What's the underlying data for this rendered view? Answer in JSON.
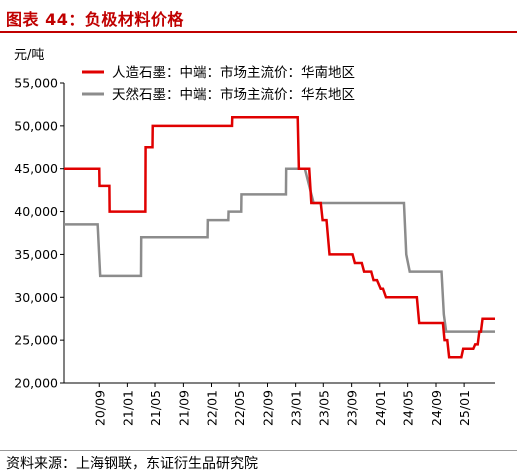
{
  "title": "图表 44：负极材料价格",
  "source": "资料来源：上海钢联，东证衍生品研究院",
  "colors": {
    "accent": "#c00000",
    "series_red": "#e00000",
    "series_gray": "#8c8c8c"
  },
  "chart_data": {
    "type": "line",
    "ylabel": "元/吨",
    "ylim": [
      20000,
      55000
    ],
    "yticks": [
      20000,
      25000,
      30000,
      35000,
      40000,
      45000,
      50000,
      55000
    ],
    "ytick_labels": [
      "20,000",
      "25,000",
      "30,000",
      "35,000",
      "40,000",
      "45,000",
      "50,000",
      "55,000"
    ],
    "xlim": [
      "2020-04-01",
      "2025-05-15"
    ],
    "xticks": [
      "2020-09-01",
      "2021-01-01",
      "2021-05-01",
      "2021-09-01",
      "2022-01-01",
      "2022-05-01",
      "2022-09-01",
      "2023-01-01",
      "2023-05-01",
      "2023-09-01",
      "2024-01-01",
      "2024-05-01",
      "2024-09-01",
      "2025-01-01"
    ],
    "xtick_labels": [
      "20/09",
      "21/01",
      "21/05",
      "21/09",
      "22/01",
      "22/05",
      "22/09",
      "23/01",
      "23/05",
      "23/09",
      "24/01",
      "24/05",
      "24/09",
      "25/01"
    ],
    "legend_position": "top-left",
    "grid": false,
    "series": [
      {
        "name": "人造石墨：中端：市场主流价：华南地区",
        "color": "#e00000",
        "points": [
          [
            "2020-04-01",
            45000
          ],
          [
            "2020-09-01",
            45000
          ],
          [
            "2020-09-02",
            43000
          ],
          [
            "2020-10-15",
            43000
          ],
          [
            "2020-10-16",
            40000
          ],
          [
            "2021-03-20",
            40000
          ],
          [
            "2021-03-21",
            47500
          ],
          [
            "2021-04-20",
            47500
          ],
          [
            "2021-04-21",
            50000
          ],
          [
            "2022-03-31",
            50000
          ],
          [
            "2022-04-01",
            51000
          ],
          [
            "2023-01-10",
            51000
          ],
          [
            "2023-01-15",
            45000
          ],
          [
            "2023-03-01",
            45000
          ],
          [
            "2023-03-10",
            41000
          ],
          [
            "2023-04-20",
            41000
          ],
          [
            "2023-04-28",
            39000
          ],
          [
            "2023-05-15",
            39000
          ],
          [
            "2023-05-28",
            35000
          ],
          [
            "2023-09-05",
            35000
          ],
          [
            "2023-09-15",
            34000
          ],
          [
            "2023-10-15",
            34000
          ],
          [
            "2023-10-25",
            33000
          ],
          [
            "2023-11-25",
            33000
          ],
          [
            "2023-12-05",
            32000
          ],
          [
            "2023-12-20",
            32000
          ],
          [
            "2024-01-05",
            31000
          ],
          [
            "2024-01-15",
            31000
          ],
          [
            "2024-01-28",
            30000
          ],
          [
            "2024-06-10",
            30000
          ],
          [
            "2024-06-20",
            27000
          ],
          [
            "2024-10-01",
            27000
          ],
          [
            "2024-10-08",
            25000
          ],
          [
            "2024-10-20",
            25000
          ],
          [
            "2024-10-28",
            23000
          ],
          [
            "2024-12-20",
            23000
          ],
          [
            "2024-12-28",
            24000
          ],
          [
            "2025-02-10",
            24000
          ],
          [
            "2025-02-18",
            24500
          ],
          [
            "2025-03-01",
            24500
          ],
          [
            "2025-03-08",
            26000
          ],
          [
            "2025-03-15",
            26000
          ],
          [
            "2025-03-22",
            27500
          ],
          [
            "2025-05-15",
            27500
          ]
        ]
      },
      {
        "name": "天然石墨：中端：市场主流价：华东地区",
        "color": "#8c8c8c",
        "points": [
          [
            "2020-04-01",
            38500
          ],
          [
            "2020-08-25",
            38500
          ],
          [
            "2020-09-05",
            32500
          ],
          [
            "2021-03-01",
            32500
          ],
          [
            "2021-03-02",
            37000
          ],
          [
            "2021-12-15",
            37000
          ],
          [
            "2021-12-16",
            39000
          ],
          [
            "2022-03-15",
            39000
          ],
          [
            "2022-03-16",
            40000
          ],
          [
            "2022-05-10",
            40000
          ],
          [
            "2022-05-11",
            42000
          ],
          [
            "2022-11-20",
            42000
          ],
          [
            "2022-11-21",
            45000
          ],
          [
            "2023-02-10",
            45000
          ],
          [
            "2023-03-20",
            41000
          ],
          [
            "2024-04-15",
            41000
          ],
          [
            "2024-04-25",
            35000
          ],
          [
            "2024-05-10",
            33000
          ],
          [
            "2024-09-25",
            33000
          ],
          [
            "2024-10-05",
            28000
          ],
          [
            "2024-10-15",
            26000
          ],
          [
            "2025-05-15",
            26000
          ]
        ]
      }
    ]
  }
}
